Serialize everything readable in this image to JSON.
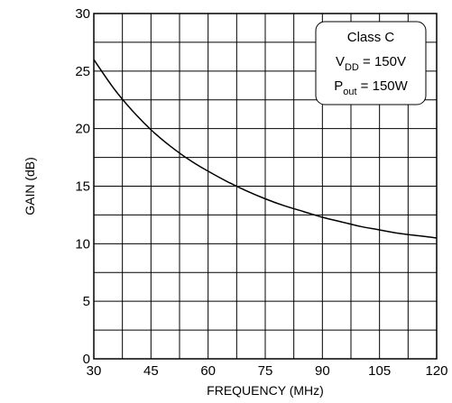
{
  "chart_data": {
    "type": "line",
    "title": "",
    "xlabel": "FREQUENCY (MHz)",
    "ylabel": "GAIN (dB)",
    "xlim": [
      30,
      120
    ],
    "ylim": [
      0,
      30
    ],
    "x_ticks": [
      30,
      45,
      60,
      75,
      90,
      105,
      120
    ],
    "y_ticks": [
      0,
      5,
      10,
      15,
      20,
      25,
      30
    ],
    "grid": true,
    "x_minor_step": 7.5,
    "y_minor_step": 2.5,
    "series": [
      {
        "x": [
          30,
          35,
          40,
          45,
          50,
          55,
          60,
          65,
          70,
          75,
          80,
          85,
          90,
          95,
          100,
          105,
          110,
          115,
          120
        ],
        "y": [
          26.0,
          23.6,
          21.6,
          19.9,
          18.5,
          17.3,
          16.3,
          15.4,
          14.6,
          13.9,
          13.3,
          12.8,
          12.3,
          11.9,
          11.5,
          11.2,
          10.9,
          10.7,
          10.5
        ]
      }
    ],
    "annotation": {
      "line1": "Class C",
      "line2_main": "V",
      "line2_sub": "DD",
      "line2_rest": " = 150V",
      "line3_main": "P",
      "line3_sub": "out",
      "line3_rest": " = 150W"
    }
  }
}
